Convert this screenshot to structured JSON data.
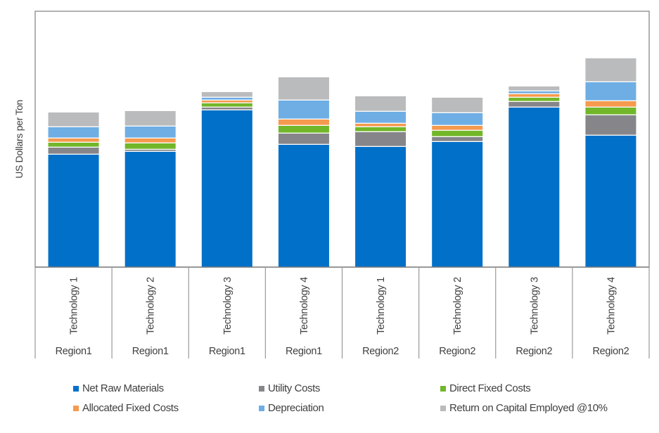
{
  "chart_data": {
    "type": "bar",
    "stacked": true,
    "title": "",
    "xlabel": "",
    "ylabel": "US Dollars per Ton",
    "ylim": [
      0,
      364
    ],
    "grid": false,
    "legend_position": "bottom",
    "categories": [
      {
        "technology": "Technology 1",
        "region": "Region1"
      },
      {
        "technology": "Technology 2",
        "region": "Region1"
      },
      {
        "technology": "Technology 3",
        "region": "Region1"
      },
      {
        "technology": "Technology 4",
        "region": "Region1"
      },
      {
        "technology": "Technology 1",
        "region": "Region2"
      },
      {
        "technology": "Technology 2",
        "region": "Region2"
      },
      {
        "technology": "Technology 3",
        "region": "Region2"
      },
      {
        "technology": "Technology 4",
        "region": "Region2"
      }
    ],
    "series": [
      {
        "name": "Net Raw Materials",
        "color": "#0070C8",
        "values": [
          160,
          164,
          223,
          174,
          171,
          178,
          227,
          187
        ]
      },
      {
        "name": "Utility Costs",
        "color": "#86868A",
        "values": [
          10,
          3,
          4,
          16,
          21,
          7,
          8,
          29
        ]
      },
      {
        "name": "Direct Fixed Costs",
        "color": "#72B72A",
        "values": [
          7,
          9,
          6,
          11,
          7,
          9,
          6,
          11
        ]
      },
      {
        "name": "Allocated Fixed Costs",
        "color": "#F59A4E",
        "values": [
          6,
          7,
          4,
          9,
          5,
          7,
          5,
          9
        ]
      },
      {
        "name": "Depreciation",
        "color": "#6EAEE4",
        "values": [
          16,
          17,
          4,
          27,
          17,
          18,
          4,
          27
        ]
      },
      {
        "name": "Return on Capital Employed @10%",
        "color": "#BABBBD",
        "values": [
          21,
          22,
          8,
          33,
          22,
          22,
          7,
          34
        ]
      }
    ]
  }
}
